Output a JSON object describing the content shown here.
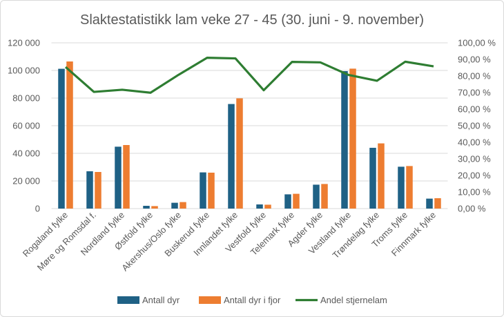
{
  "chart_data": {
    "type": "bar+line",
    "title": "Slaktestatistikk lam veke 27 - 45 (30. juni - 9. november)",
    "categories": [
      "Rogaland fylke",
      "Møre og Romsdal f.",
      "Nordland fylke",
      "Østfold fylke",
      "Akershus/Oslo fylke",
      "Buskerud fylke",
      "Innlandet fylke",
      "Vestfold fylke",
      "Telemark fylke",
      "Agder fylke",
      "Vestland fylke",
      "Trøndelag fylke",
      "Troms fylke",
      "Finnmark fylke"
    ],
    "series": [
      {
        "name": "Antall dyr",
        "type": "bar",
        "axis": "left",
        "color": "#1f6185",
        "values": [
          101200,
          27000,
          44800,
          2000,
          4200,
          26200,
          75700,
          3000,
          10300,
          17300,
          99500,
          44000,
          30300,
          7200
        ]
      },
      {
        "name": "Antall dyr i fjor",
        "type": "bar",
        "axis": "left",
        "color": "#ed7d31",
        "values": [
          106500,
          26500,
          46000,
          1800,
          4700,
          26000,
          79800,
          2800,
          10700,
          17800,
          101300,
          47200,
          30800,
          7500
        ]
      },
      {
        "name": "Andel stjernelam",
        "type": "line",
        "axis": "right",
        "color": "#2e7d32",
        "values": [
          85.4,
          70.4,
          71.7,
          69.9,
          80.8,
          91.0,
          90.6,
          71.4,
          88.5,
          88.2,
          80.6,
          77.1,
          88.6,
          85.8
        ]
      }
    ],
    "y_left": {
      "range": [
        0,
        120000
      ],
      "ticks": [
        "0",
        "20 000",
        "40 000",
        "60 000",
        "80 000",
        "100 000",
        "120 000"
      ]
    },
    "y_right": {
      "range": [
        0,
        100
      ],
      "ticks": [
        "0,00 %",
        "10,00 %",
        "20,00 %",
        "30,00 %",
        "40,00 %",
        "50,00 %",
        "60,00 %",
        "70,00 %",
        "80,00 %",
        "90,00 %",
        "100,00 %"
      ]
    },
    "grid": true,
    "legend": "bottom"
  }
}
